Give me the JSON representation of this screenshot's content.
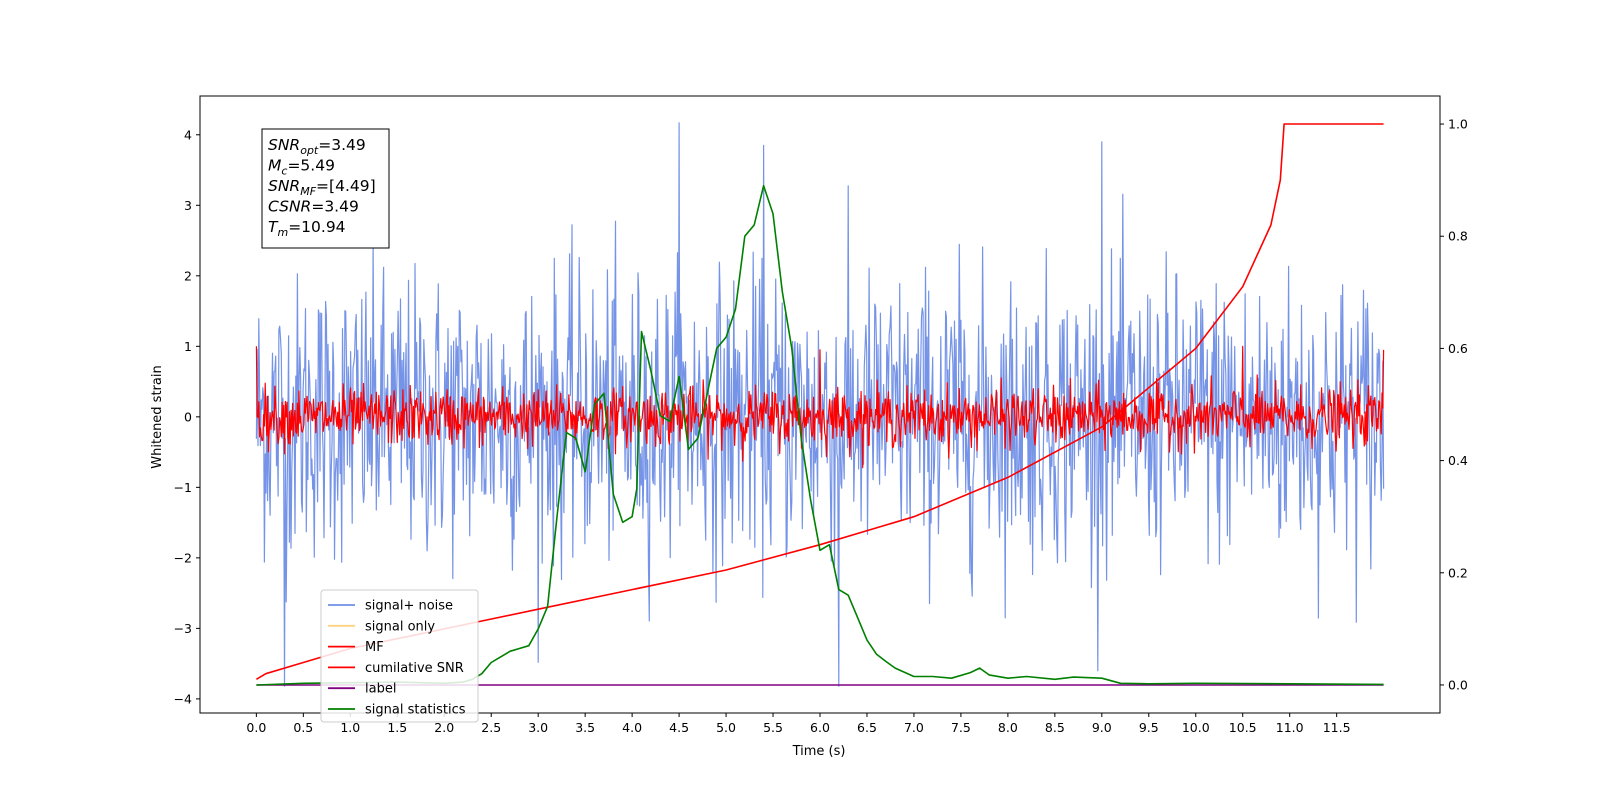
{
  "chart_data": {
    "type": "line",
    "xlabel": "Time (s)",
    "ylabel": "Whitened strain",
    "xlim": [
      -0.6,
      12.6
    ],
    "ylim": [
      -4.2,
      4.55
    ],
    "ylim_right": [
      -0.05,
      1.05
    ],
    "x_ticks": [
      "0.0",
      "0.5",
      "1.0",
      "1.5",
      "2.0",
      "2.5",
      "3.0",
      "3.5",
      "4.0",
      "4.5",
      "5.0",
      "5.5",
      "6.0",
      "6.5",
      "7.0",
      "7.5",
      "8.0",
      "8.5",
      "9.0",
      "9.5",
      "10.0",
      "10.5",
      "11.0",
      "11.5"
    ],
    "y_ticks_left": [
      "4",
      "3",
      "2",
      "1",
      "0",
      "−1",
      "−2",
      "−3",
      "−4"
    ],
    "y_ticks_right": [
      "1.0",
      "0.8",
      "0.6",
      "0.4",
      "0.2",
      "0.0"
    ],
    "grid": false,
    "legend_position": "lower-left",
    "legend": [
      {
        "label": "signal+ noise",
        "color": "#6f8ee6"
      },
      {
        "label": "signal only",
        "color": "#ffd27f"
      },
      {
        "label": "MF",
        "color": "#ff0000"
      },
      {
        "label": "cumilative SNR",
        "color": "#ff0000"
      },
      {
        "label": "label",
        "color": "#800080"
      },
      {
        "label": "signal statistics",
        "color": "#008000"
      }
    ],
    "annotation": {
      "lines": [
        {
          "sym": "SNR",
          "sub": "opt",
          "val": "=3.49"
        },
        {
          "sym": "M",
          "sub": "c",
          "val": "=5.49"
        },
        {
          "sym": "SNR",
          "sub": "MF",
          "val": "=[4.49]"
        },
        {
          "sym": "CSNR",
          "sub": "",
          "val": "=3.49"
        },
        {
          "sym": "T",
          "sub": "m",
          "val": "=10.94"
        }
      ]
    },
    "series": [
      {
        "name": "signal+ noise",
        "axis": "left",
        "color": "#6f8ee6",
        "kind": "noise",
        "x_range": [
          0,
          12.0
        ],
        "amplitude_std": 1.0,
        "extremes": [
          [
            4.5,
            4.17
          ],
          [
            6.2,
            -3.82
          ],
          [
            0.3,
            -3.82
          ],
          [
            9.0,
            3.9
          ],
          [
            5.4,
            3.85
          ]
        ]
      },
      {
        "name": "MF",
        "axis": "left",
        "color": "#ff0000",
        "kind": "noise",
        "x_range": [
          0,
          12.0
        ],
        "amplitude_std": 0.2,
        "extremes": [
          [
            0.0,
            1.0
          ],
          [
            12.0,
            0.95
          ],
          [
            6.0,
            0.95
          ],
          [
            10.5,
            1.0
          ]
        ]
      },
      {
        "name": "cumilative SNR",
        "axis": "right",
        "color": "#ff0000",
        "kind": "line",
        "x": [
          0,
          0.1,
          0.5,
          1,
          2,
          3,
          4,
          5,
          6,
          7,
          8,
          9,
          10,
          10.5,
          10.8,
          10.9,
          10.94,
          11.0,
          12.0
        ],
        "y": [
          0.01,
          0.02,
          0.04,
          0.065,
          0.1,
          0.135,
          0.17,
          0.205,
          0.25,
          0.3,
          0.37,
          0.46,
          0.6,
          0.71,
          0.82,
          0.9,
          1.0,
          1.0,
          1.0
        ]
      },
      {
        "name": "label",
        "axis": "right",
        "color": "#800080",
        "kind": "line",
        "x": [
          0,
          12.0
        ],
        "y": [
          0.0,
          0.0
        ]
      },
      {
        "name": "signal statistics",
        "axis": "right",
        "color": "#008000",
        "kind": "line",
        "x": [
          0,
          0.5,
          1,
          1.5,
          2,
          2.2,
          2.3,
          2.4,
          2.5,
          2.6,
          2.7,
          2.8,
          2.9,
          3.0,
          3.1,
          3.2,
          3.3,
          3.4,
          3.5,
          3.6,
          3.7,
          3.8,
          3.9,
          4.0,
          4.05,
          4.1,
          4.2,
          4.3,
          4.4,
          4.5,
          4.6,
          4.7,
          4.8,
          4.9,
          5.0,
          5.1,
          5.2,
          5.3,
          5.4,
          5.5,
          5.6,
          5.7,
          5.8,
          5.9,
          6.0,
          6.1,
          6.2,
          6.3,
          6.4,
          6.5,
          6.6,
          6.7,
          6.8,
          7.0,
          7.2,
          7.4,
          7.6,
          7.7,
          7.8,
          8.0,
          8.2,
          8.5,
          8.7,
          9.0,
          9.2,
          9.5,
          10.0,
          11.0,
          12.0
        ],
        "y": [
          0.0,
          0.003,
          0.004,
          0.005,
          0.003,
          0.005,
          0.01,
          0.02,
          0.04,
          0.05,
          0.06,
          0.065,
          0.07,
          0.1,
          0.14,
          0.3,
          0.45,
          0.44,
          0.38,
          0.5,
          0.52,
          0.34,
          0.29,
          0.3,
          0.35,
          0.63,
          0.56,
          0.48,
          0.47,
          0.55,
          0.42,
          0.44,
          0.52,
          0.6,
          0.62,
          0.67,
          0.8,
          0.82,
          0.89,
          0.84,
          0.7,
          0.6,
          0.44,
          0.33,
          0.24,
          0.25,
          0.17,
          0.16,
          0.12,
          0.08,
          0.055,
          0.042,
          0.03,
          0.015,
          0.015,
          0.012,
          0.022,
          0.03,
          0.018,
          0.012,
          0.015,
          0.01,
          0.014,
          0.012,
          0.003,
          0.002,
          0.003,
          0.002,
          0.001
        ]
      }
    ]
  }
}
